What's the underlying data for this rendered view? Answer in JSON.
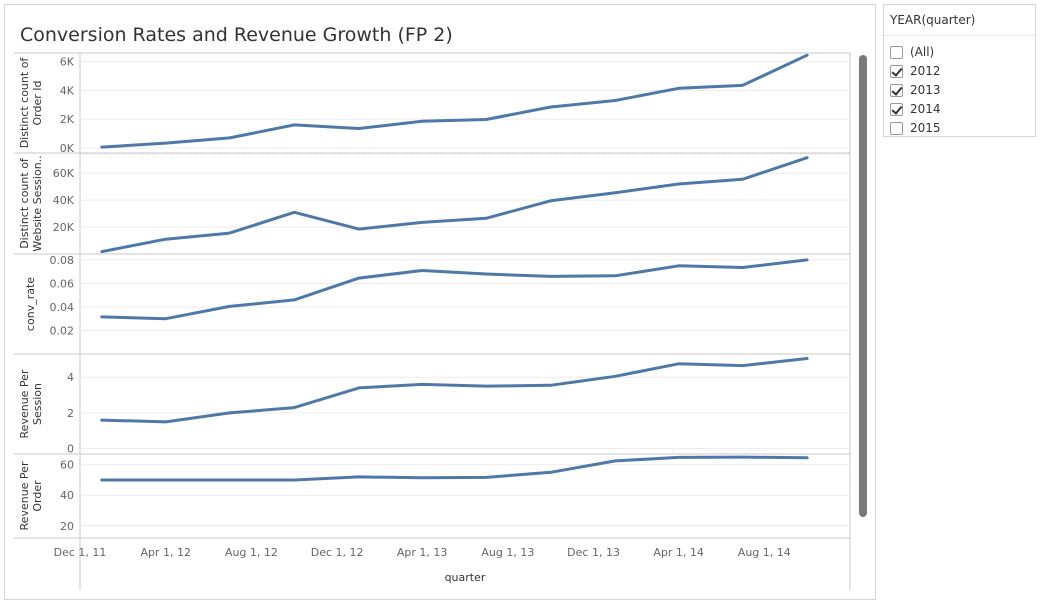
{
  "dashboard": {
    "title": "Conversion Rates and Revenue Growth (FP 2)"
  },
  "filter": {
    "title": "YEAR(quarter)",
    "options": [
      {
        "label": "(All)",
        "checked": false
      },
      {
        "label": "2012",
        "checked": true
      },
      {
        "label": "2013",
        "checked": true
      },
      {
        "label": "2014",
        "checked": true
      },
      {
        "label": "2015",
        "checked": false
      }
    ]
  },
  "colors": {
    "line": "#4e79a7",
    "grid": "#ececec",
    "pane_border": "#c8c8c8"
  },
  "chart_data": {
    "type": "line",
    "title": "Conversion Rates and Revenue Growth (FP 2)",
    "xlabel": "quarter",
    "x": [
      "2012-01-01",
      "2012-04-01",
      "2012-07-01",
      "2012-10-01",
      "2013-01-01",
      "2013-04-01",
      "2013-07-01",
      "2013-10-01",
      "2014-01-01",
      "2014-04-01",
      "2014-07-01",
      "2014-10-01"
    ],
    "x_ticks": [
      "Dec 1, 11",
      "Apr 1, 12",
      "Aug 1, 12",
      "Dec 1, 12",
      "Apr 1, 13",
      "Aug 1, 13",
      "Dec 1, 13",
      "Apr 1, 14",
      "Aug 1, 14"
    ],
    "x_range": [
      "2011-12-01",
      "2014-12-01"
    ],
    "grid": true,
    "series": [
      {
        "name": "Distinct count of Order Id",
        "ylabel": [
          "Distinct count of",
          "Order Id"
        ],
        "yticks": [
          0,
          2000,
          4000,
          6000
        ],
        "ytick_labels": [
          "0K",
          "2K",
          "4K",
          "6K"
        ],
        "ylim": [
          -350,
          6600
        ],
        "values": [
          60,
          340,
          700,
          1600,
          1350,
          1850,
          1980,
          2850,
          3300,
          4150,
          4350,
          6450
        ]
      },
      {
        "name": "Distinct count of Website Session..",
        "ylabel": [
          "Distinct count of",
          "Website Session.."
        ],
        "yticks": [
          20000,
          40000,
          60000
        ],
        "ytick_labels": [
          "20K",
          "40K",
          "60K"
        ],
        "ylim": [
          0,
          75000
        ],
        "values": [
          1800,
          11000,
          15500,
          31000,
          18500,
          23500,
          26500,
          39500,
          45500,
          52000,
          55500,
          71500
        ]
      },
      {
        "name": "conv_rate",
        "ylabel": [
          "conv_rate"
        ],
        "yticks": [
          0.02,
          0.04,
          0.06,
          0.08
        ],
        "ytick_labels": [
          "0.02",
          "0.04",
          "0.06",
          "0.08"
        ],
        "ylim": [
          0,
          0.085
        ],
        "values": [
          0.0315,
          0.03,
          0.0405,
          0.046,
          0.0645,
          0.071,
          0.068,
          0.066,
          0.0665,
          0.075,
          0.0735,
          0.08
        ]
      },
      {
        "name": "Revenue Per Session",
        "ylabel": [
          "Revenue Per",
          "Session"
        ],
        "yticks": [
          0,
          2,
          4
        ],
        "ytick_labels": [
          "0",
          "2",
          "4"
        ],
        "ylim": [
          -0.3,
          5.3
        ],
        "values": [
          1.6,
          1.5,
          2.0,
          2.3,
          3.4,
          3.6,
          3.5,
          3.55,
          4.05,
          4.75,
          4.65,
          5.05
        ]
      },
      {
        "name": "Revenue Per Order",
        "ylabel": [
          "Revenue Per",
          "Order"
        ],
        "yticks": [
          20,
          40,
          60
        ],
        "ytick_labels": [
          "20",
          "40",
          "60"
        ],
        "ylim": [
          12,
          67
        ],
        "values": [
          50.0,
          50.0,
          50.0,
          50.0,
          52.0,
          51.5,
          51.7,
          55.0,
          62.5,
          64.8,
          65.0,
          64.5
        ]
      }
    ]
  }
}
